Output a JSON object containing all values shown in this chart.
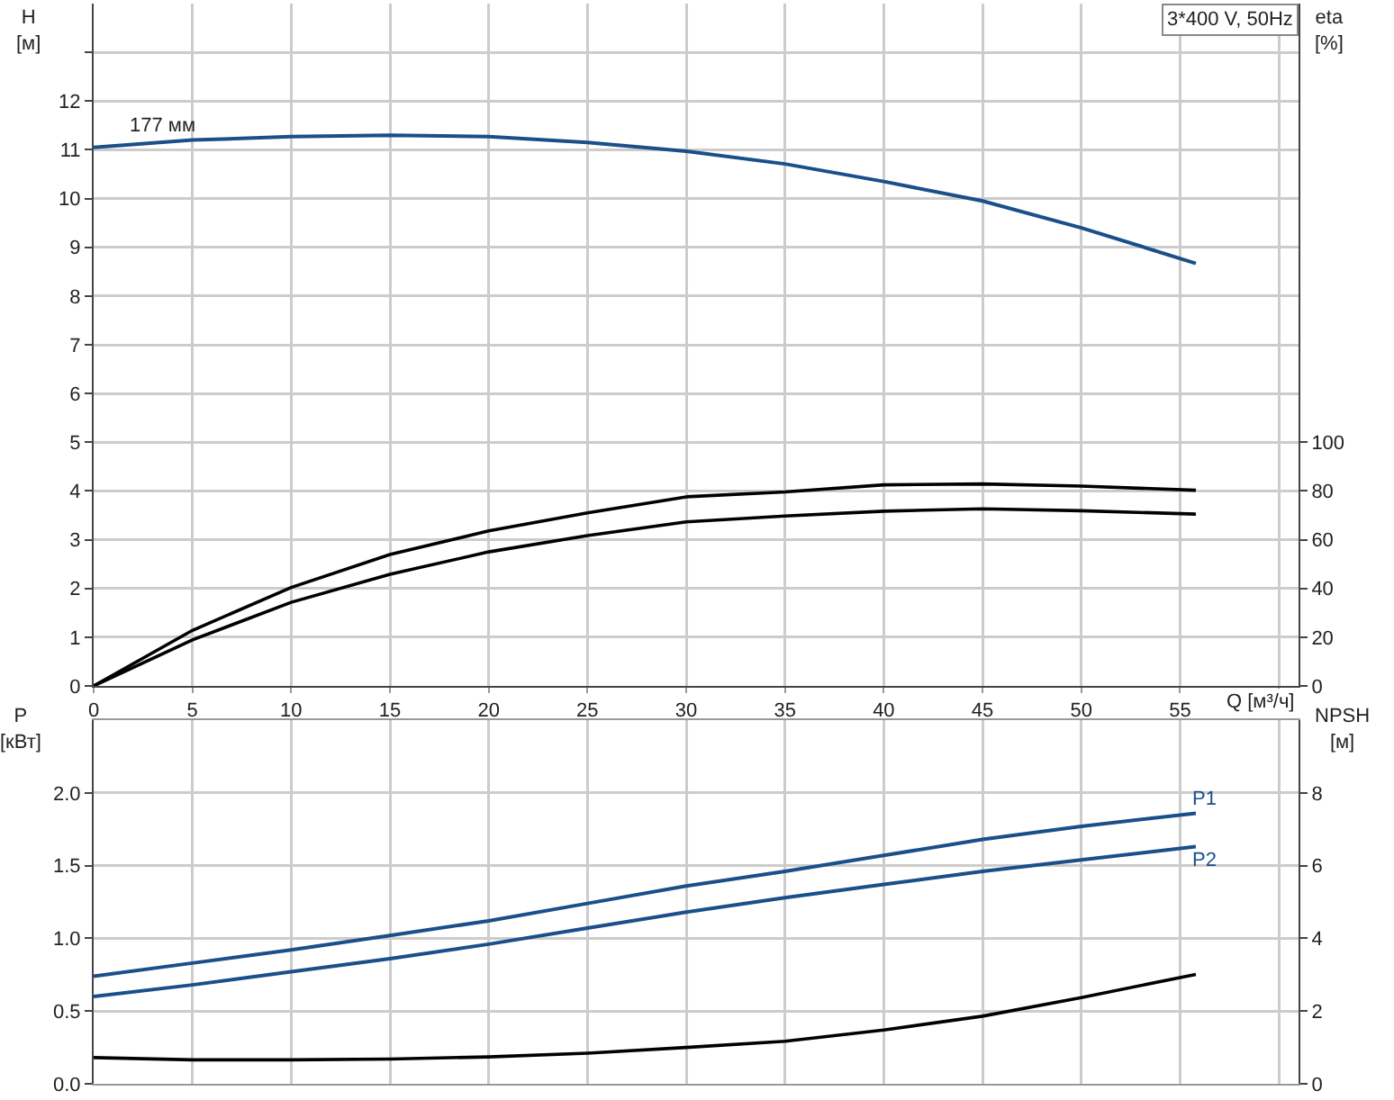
{
  "chart_data": [
    {
      "type": "line",
      "xlabel": "Q [м³/ч]",
      "ylabel": "H [м]",
      "y2label": "eta [%]",
      "xlim": [
        0,
        61
      ],
      "xticks": [
        0,
        5,
        10,
        15,
        20,
        25,
        30,
        35,
        40,
        45,
        50,
        55,
        {
          "value": 60,
          "label": null
        }
      ],
      "ylim": [
        0,
        14
      ],
      "yticks": [
        0,
        1,
        2,
        3,
        4,
        5,
        6,
        7,
        8,
        9,
        10,
        11,
        12,
        {
          "value": 13,
          "label": null
        }
      ],
      "y2lim": [
        0,
        280
      ],
      "y2ticks": [
        0,
        20,
        40,
        60,
        80,
        100
      ],
      "grid": true,
      "legend": false,
      "marker": "none",
      "line_style": "solid",
      "annotations": [
        "3*400 V, 50Hz"
      ],
      "series": [
        {
          "name": "177 мм",
          "color": "#1a4f8a",
          "x": [
            0,
            5,
            10,
            15,
            20,
            25,
            30,
            35,
            40,
            45,
            50,
            55.8
          ],
          "values": [
            11.05,
            11.2,
            11.27,
            11.3,
            11.27,
            11.15,
            10.97,
            10.71,
            10.35,
            9.95,
            9.4,
            8.67
          ]
        },
        {
          "color": "#000000",
          "axis": "y2",
          "x": [
            0,
            5,
            10,
            15,
            20,
            25,
            30,
            35,
            40,
            45,
            50,
            55.8
          ],
          "values": [
            0,
            22.8,
            40.4,
            53.9,
            63.6,
            71,
            77.6,
            79.6,
            82.5,
            82.9,
            82,
            80.3
          ]
        },
        {
          "color": "#000000",
          "axis": "y2",
          "x": [
            0,
            5,
            10,
            15,
            20,
            25,
            30,
            35,
            40,
            45,
            50,
            55.8
          ],
          "values": [
            0,
            18.9,
            34.3,
            45.8,
            55,
            61.7,
            67.3,
            69.7,
            71.7,
            72.7,
            71.9,
            70.5
          ]
        }
      ]
    },
    {
      "type": "line",
      "ylabel": "P [кВт]",
      "y2label": "NPSH [м]",
      "xlim": [
        0,
        61
      ],
      "xticks": [
        0,
        5,
        10,
        15,
        20,
        25,
        30,
        35,
        40,
        45,
        50,
        55,
        60
      ],
      "ylim": [
        0,
        2.5
      ],
      "yticks": [
        {
          "value": 0,
          "label": "0.0"
        },
        0.5,
        {
          "value": 1,
          "label": "1.0"
        },
        1.5,
        {
          "value": 2,
          "label": "2.0"
        }
      ],
      "y2lim": [
        0,
        10
      ],
      "y2ticks": [
        0,
        2,
        4,
        6,
        8
      ],
      "grid": true,
      "legend": false,
      "marker": "none",
      "line_style": "solid",
      "tick_labels": "y",
      "series": [
        {
          "name": "P1",
          "color": "#1a4f8a",
          "x": [
            0,
            5,
            10,
            15,
            20,
            25,
            30,
            35,
            40,
            45,
            50,
            55.8
          ],
          "values": [
            0.74,
            0.83,
            0.92,
            1.02,
            1.12,
            1.24,
            1.36,
            1.46,
            1.57,
            1.68,
            1.77,
            1.86
          ]
        },
        {
          "name": "P2",
          "color": "#1a4f8a",
          "x": [
            0,
            5,
            10,
            15,
            20,
            25,
            30,
            35,
            40,
            45,
            50,
            55.8
          ],
          "values": [
            0.6,
            0.68,
            0.77,
            0.86,
            0.96,
            1.07,
            1.18,
            1.28,
            1.37,
            1.46,
            1.54,
            1.63
          ]
        },
        {
          "color": "#000000",
          "axis": "y2",
          "x": [
            0,
            5,
            10,
            15,
            20,
            25,
            30,
            35,
            40,
            45,
            50,
            55.8
          ],
          "values": [
            0.72,
            0.66,
            0.66,
            0.68,
            0.74,
            0.84,
            1.0,
            1.17,
            1.48,
            1.86,
            2.37,
            3.01
          ]
        }
      ]
    }
  ]
}
